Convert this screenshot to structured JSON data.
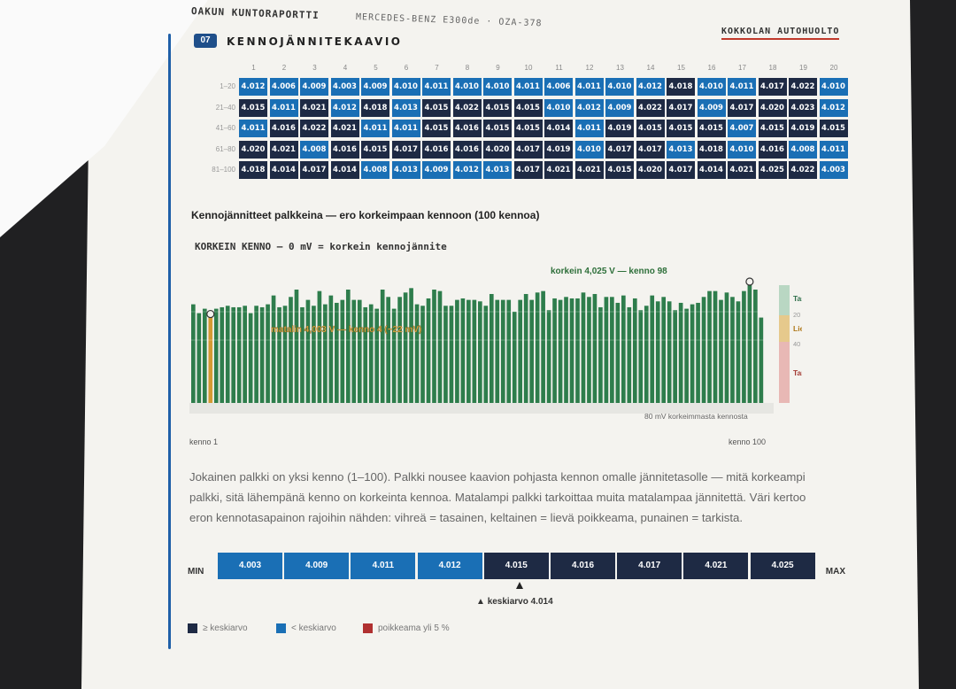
{
  "header": {
    "report_title": "OAKUN KUNTORAPORTTI",
    "vehicle": "MERCEDES-BENZ E300de · OZA-378",
    "shop": "KOKKOLAN AUTOHUOLTO"
  },
  "section": {
    "number": "07",
    "title": "KENNOJÄNNITEKAAVIO"
  },
  "grid": {
    "column_numbers": [
      "1",
      "2",
      "3",
      "4",
      "5",
      "6",
      "7",
      "8",
      "9",
      "10",
      "11",
      "12",
      "13",
      "14",
      "15",
      "16",
      "17",
      "18",
      "19",
      "20"
    ],
    "rows": [
      {
        "label": "1–20",
        "cells": [
          "4.012",
          "4.006",
          "4.009",
          "4.003",
          "4.009",
          "4.010",
          "4.011",
          "4.010",
          "4.010",
          "4.011",
          "4.006",
          "4.011",
          "4.010",
          "4.012",
          "4.018",
          "4.010",
          "4.011",
          "4.017",
          "4.022",
          "4.010"
        ]
      },
      {
        "label": "21–40",
        "cells": [
          "4.015",
          "4.011",
          "4.021",
          "4.012",
          "4.018",
          "4.013",
          "4.015",
          "4.022",
          "4.015",
          "4.015",
          "4.010",
          "4.012",
          "4.009",
          "4.022",
          "4.017",
          "4.009",
          "4.017",
          "4.020",
          "4.023",
          "4.012"
        ]
      },
      {
        "label": "41–60",
        "cells": [
          "4.011",
          "4.016",
          "4.022",
          "4.021",
          "4.011",
          "4.011",
          "4.015",
          "4.016",
          "4.015",
          "4.015",
          "4.014",
          "4.011",
          "4.019",
          "4.015",
          "4.015",
          "4.015",
          "4.007",
          "4.015",
          "4.019",
          "4.015"
        ]
      },
      {
        "label": "61–80",
        "cells": [
          "4.020",
          "4.021",
          "4.008",
          "4.016",
          "4.015",
          "4.017",
          "4.016",
          "4.016",
          "4.020",
          "4.017",
          "4.019",
          "4.010",
          "4.017",
          "4.017",
          "4.013",
          "4.018",
          "4.010",
          "4.016",
          "4.008",
          "4.011"
        ]
      },
      {
        "label": "81–100",
        "cells": [
          "4.018",
          "4.014",
          "4.017",
          "4.014",
          "4.008",
          "4.013",
          "4.009",
          "4.012",
          "4.013",
          "4.017",
          "4.021",
          "4.021",
          "4.015",
          "4.020",
          "4.017",
          "4.014",
          "4.021",
          "4.025",
          "4.022",
          "4.003"
        ]
      }
    ],
    "mean": 4.014,
    "colors": {
      "below_mean": "#1a6fb5",
      "at_or_above_mean": "#1e2a44"
    }
  },
  "bars": {
    "subtitle": "Kennojännitteet palkkeina — ero korkeimpaan kennoon (100 kennoa)",
    "heading": "KORKEIN KENNO — 0 mV = korkein kennojännite",
    "label_first": "kenno 1",
    "label_last": "kenno 100"
  },
  "chart_data": {
    "type": "bar",
    "title": "",
    "xlabel": "",
    "ylabel": "",
    "annotations": {
      "max": "korkein 4,025 V — kenno 98",
      "min": "matalin 4,003 V — kenno 4 (−22 mV)",
      "axis_note": "80 mV korkeimmasta kennosta"
    },
    "zones": [
      {
        "label": "Tasainen",
        "color": "#b9d7c3"
      },
      {
        "label": "Lievä",
        "color": "#e6c98c"
      },
      {
        "label": "Tarkista",
        "color": "#e8b8b5"
      }
    ],
    "zone_ticks": [
      "20",
      "40"
    ],
    "highlight_cells": [
      4,
      98
    ],
    "bar_colors": {
      "normal": "#2e7d4c",
      "lowest": "#d49a33"
    }
  },
  "caption": "Jokainen palkki on yksi kenno (1–100).  Palkki nousee kaavion pohjasta kennon omalle jännitetasolle — mitä korkeampi palkki, sitä lähempänä kenno on korkeinta kennoa. Matalampi palkki tarkoittaa muita matalampaa jännitettä. Väri kertoo eron kennotasapainon rajoihin nähden: vihreä = tasainen, keltainen = lievä poikkeama, punainen = tarkista.",
  "range": {
    "min_label": "MIN",
    "max_label": "MAX",
    "values": [
      "4.003",
      "4.009",
      "4.011",
      "4.012",
      "4.015",
      "4.016",
      "4.017",
      "4.021",
      "4.025"
    ],
    "mean_label": "keskiarvo 4.014"
  },
  "legend": [
    {
      "label": "≥ keskiarvo",
      "color": "#1e2a44"
    },
    {
      "label": "< keskiarvo",
      "color": "#1a6fb5"
    },
    {
      "label": "poikkeama yli 5 %",
      "color": "#b03030"
    }
  ]
}
